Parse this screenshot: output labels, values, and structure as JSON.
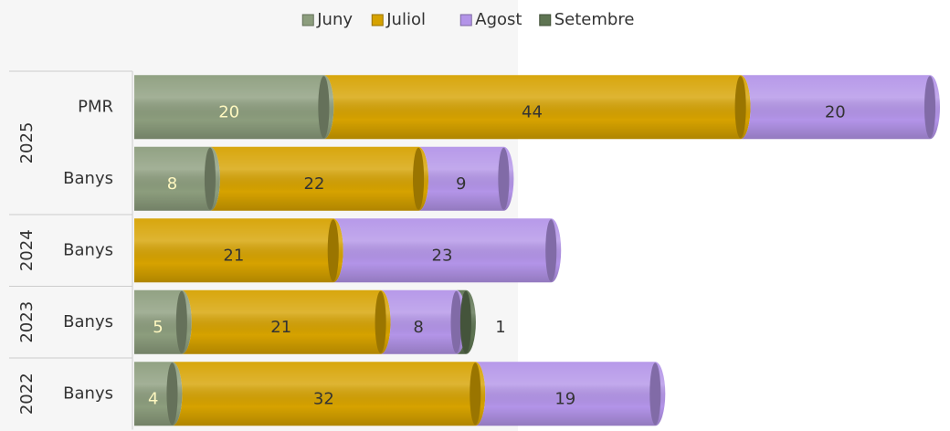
{
  "chart_data": {
    "type": "bar",
    "orientation": "horizontal",
    "stacked": true,
    "legend": "top",
    "groups": [
      {
        "name": "2025",
        "categories": [
          "PMR",
          "Banys"
        ]
      },
      {
        "name": "2024",
        "categories": [
          "Banys"
        ]
      },
      {
        "name": "2023",
        "categories": [
          "Banys"
        ]
      },
      {
        "name": "2022",
        "categories": [
          "Banys"
        ]
      }
    ],
    "series": [
      {
        "name": "Juny",
        "color": "#8c9d7d",
        "label_color": "#fff8c0",
        "values": [
          20,
          8,
          null,
          5,
          4
        ]
      },
      {
        "name": "Juliol",
        "color": "#d6a200",
        "label_color": "#333333",
        "values": [
          44,
          22,
          21,
          21,
          32
        ]
      },
      {
        "name": "Agost",
        "color": "#b394e8",
        "label_color": "#333333",
        "values": [
          20,
          9,
          23,
          8,
          19
        ]
      },
      {
        "name": "Setembre",
        "color": "#5e7452",
        "label_color": "#333333",
        "values": [
          null,
          null,
          null,
          1,
          null
        ]
      }
    ]
  }
}
